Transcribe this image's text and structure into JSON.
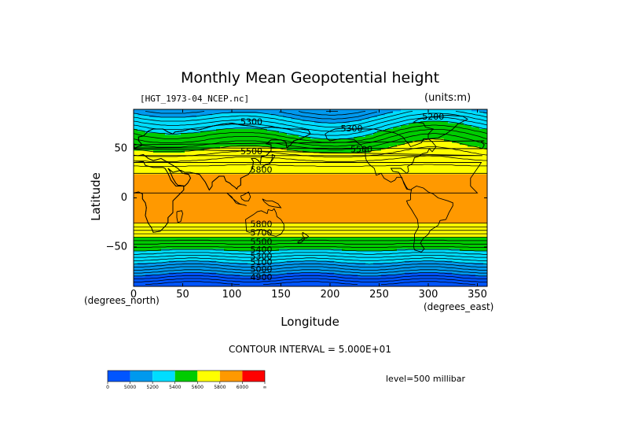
{
  "chart_data": {
    "type": "heatmap",
    "title": "Monthly Mean Geopotential height",
    "dataset_label": "[HGT_1973-04_NCEP.nc]",
    "units_label": "(units:m)",
    "xlabel": "Longitude",
    "ylabel": "Latitude",
    "x_unit_label": "(degrees_north)",
    "x_unit_label_right": "(degrees_east)",
    "xlim": [
      0,
      360
    ],
    "ylim": [
      -90,
      90
    ],
    "x_ticks": [
      0,
      50,
      100,
      150,
      200,
      250,
      300,
      350
    ],
    "y_ticks": [
      50,
      0,
      -50
    ],
    "contour_interval_text": "CONTOUR INTERVAL = 5.000E+01",
    "level_text": "level=500 millibar",
    "colorbar": {
      "colors": [
        "#0055ff",
        "#0099ee",
        "#00ddff",
        "#00cc00",
        "#ffff00",
        "#ff9900",
        "#ff0000"
      ],
      "labels": [
        "0",
        "5000",
        "5200",
        "5400",
        "5600",
        "5800",
        "6000",
        "∞"
      ]
    },
    "contour_labels": [
      {
        "text": "5300",
        "lon": 120,
        "lat": 77
      },
      {
        "text": "5300",
        "lon": 222,
        "lat": 70
      },
      {
        "text": "5200",
        "lon": 305,
        "lat": 82
      },
      {
        "text": "5500",
        "lon": 120,
        "lat": 47
      },
      {
        "text": "5500",
        "lon": 232,
        "lat": 49
      },
      {
        "text": "5800",
        "lon": 130,
        "lat": 28
      },
      {
        "text": "5800",
        "lon": 130,
        "lat": -27
      },
      {
        "text": "5700",
        "lon": 130,
        "lat": -36
      },
      {
        "text": "5500",
        "lon": 130,
        "lat": -45
      },
      {
        "text": "5400",
        "lon": 130,
        "lat": -53
      },
      {
        "text": "5300",
        "lon": 130,
        "lat": -60
      },
      {
        "text": "5100",
        "lon": 130,
        "lat": -66
      },
      {
        "text": "5000",
        "lon": 130,
        "lat": -73
      },
      {
        "text": "4900",
        "lon": 130,
        "lat": -81
      }
    ]
  }
}
